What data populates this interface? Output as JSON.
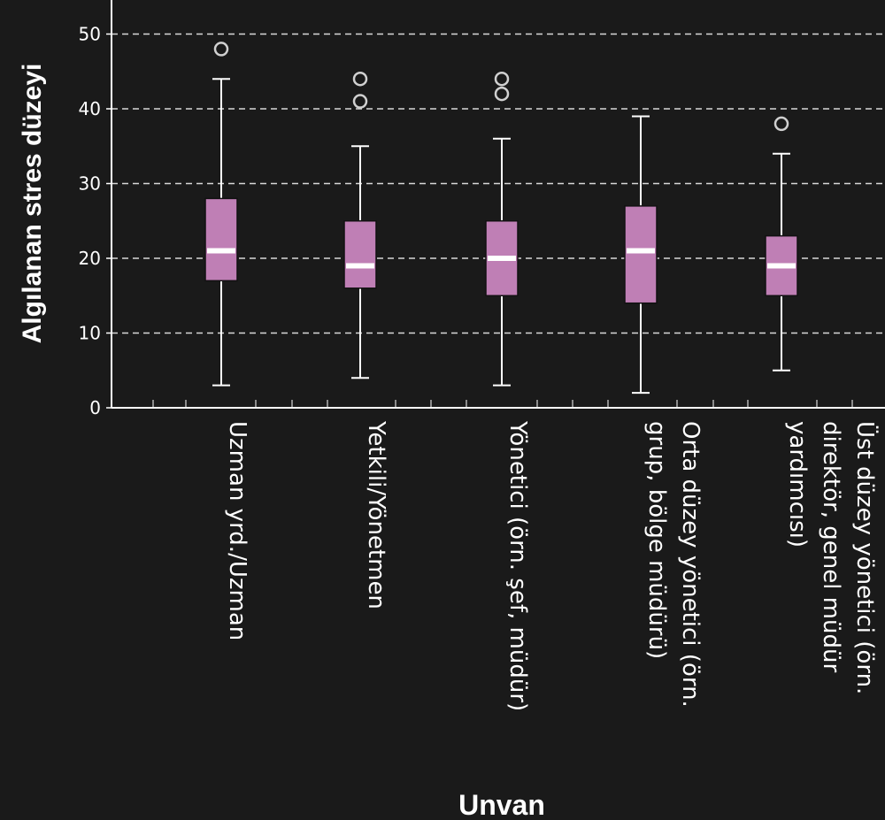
{
  "chart_data": {
    "type": "boxplot",
    "xlabel": "Unvan",
    "ylabel": "Algılanan stres düzeyi",
    "ylim": [
      0,
      55
    ],
    "yticks": [
      0,
      10,
      20,
      30,
      40,
      50
    ],
    "grid": true,
    "colors": {
      "background": "#1a1a1a",
      "box_fill": "#bf7fb5",
      "median": "#ffffff",
      "whisker": "#ffffff",
      "grid": "#d8d8d8"
    },
    "categories": [
      {
        "lines": [
          "Uzman yrd./Uzman"
        ],
        "min": 3,
        "q1": 17,
        "median": 21,
        "q3": 28,
        "max": 44,
        "outliers": [
          48
        ]
      },
      {
        "lines": [
          "Yetkili/Yönetmen"
        ],
        "min": 4,
        "q1": 16,
        "median": 19,
        "q3": 25,
        "max": 35,
        "outliers": [
          41,
          44
        ]
      },
      {
        "lines": [
          "Yönetici (örn. şef, müdür)"
        ],
        "min": 3,
        "q1": 15,
        "median": 20,
        "q3": 25,
        "max": 36,
        "outliers": [
          42,
          44
        ]
      },
      {
        "lines": [
          "Orta düzey yönetici (örn.",
          "grup, bölge müdürü)"
        ],
        "min": 2,
        "q1": 14,
        "median": 21,
        "q3": 27,
        "max": 39,
        "outliers": []
      },
      {
        "lines": [
          "Üst düzey yönetici (örn.",
          "direktör, genel müdür",
          "yardımcısı)"
        ],
        "min": 5,
        "q1": 15,
        "median": 19,
        "q3": 23,
        "max": 34,
        "outliers": [
          38
        ]
      }
    ]
  }
}
